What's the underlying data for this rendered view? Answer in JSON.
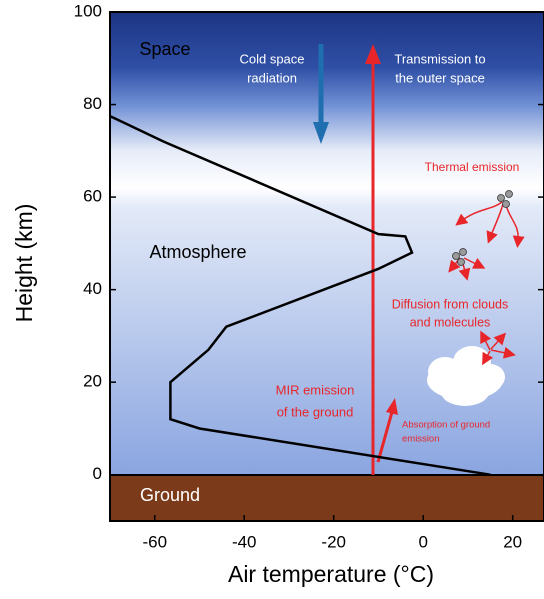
{
  "chart_data": {
    "type": "line",
    "x_label": "Air temperature (°C)",
    "y_label": "Height (km)",
    "xlim": [
      -70,
      27
    ],
    "ylim": [
      -10,
      100
    ],
    "xticks": [
      -60,
      -40,
      -20,
      0,
      20
    ],
    "yticks": [
      0,
      20,
      40,
      60,
      80,
      100
    ],
    "x": [
      -70,
      -58,
      -10,
      -4,
      -2.5,
      -10,
      -44,
      -48,
      -56.5,
      -56.5,
      -50,
      15
    ],
    "series": [
      {
        "color": "#000000",
        "values": [
          77.5,
          72,
          52,
          51.5,
          48,
          44.5,
          32,
          27,
          20,
          12,
          10,
          0
        ]
      }
    ],
    "annotations": [
      {
        "lines": [
          "Space"
        ]
      },
      {
        "lines": [
          "Atmosphere"
        ]
      },
      {
        "lines": [
          "Ground"
        ]
      },
      {
        "lines": [
          "Cold space",
          "radiation"
        ]
      },
      {
        "lines": [
          "Transmission to",
          "the outer space"
        ]
      },
      {
        "lines": [
          "Thermal emission"
        ]
      },
      {
        "lines": [
          "Diffusion from clouds",
          "and molecules"
        ]
      },
      {
        "lines": [
          "MIR emission",
          "of the ground"
        ]
      },
      {
        "lines": [
          "Absorption of ground",
          "emission"
        ]
      }
    ]
  }
}
